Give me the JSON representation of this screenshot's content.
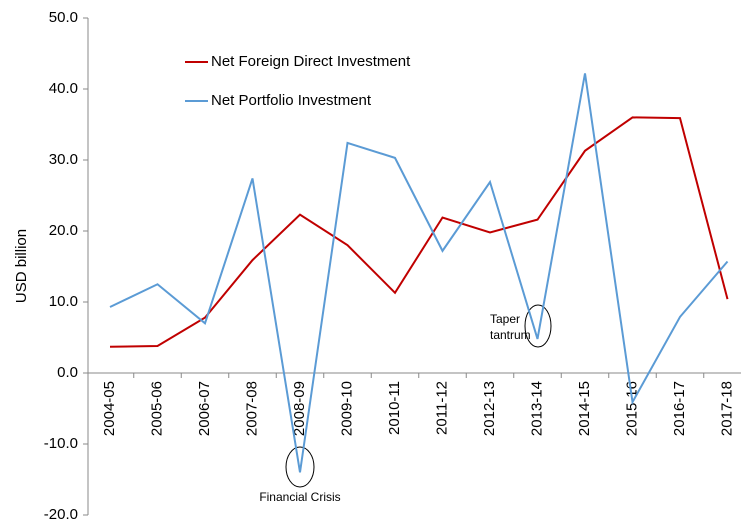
{
  "chart_data": {
    "type": "line",
    "y_axis_label": "USD billion",
    "categories": [
      "2004-05",
      "2005-06",
      "2006-07",
      "2007-08",
      "2008-09",
      "2009-10",
      "2010-11",
      "2011-12",
      "2012-13",
      "2013-14",
      "2014-15",
      "2015-16",
      "2016-17",
      "2017-18"
    ],
    "series": [
      {
        "name": "Net Foreign Direct Investment",
        "color": "#c00000",
        "values": [
          3.7,
          3.8,
          7.8,
          15.9,
          22.3,
          18.0,
          11.3,
          21.9,
          19.8,
          21.6,
          31.3,
          36.0,
          35.9,
          10.4
        ]
      },
      {
        "name": "Net Portfolio Investment",
        "color": "#5b9bd5",
        "values": [
          9.3,
          12.5,
          7.0,
          27.4,
          -14.0,
          32.4,
          30.3,
          17.2,
          26.9,
          4.8,
          42.2,
          -4.1,
          7.9,
          15.7
        ]
      }
    ],
    "ylim": [
      -20,
      50
    ],
    "yticks": [
      {
        "value": -20,
        "label": "-20.0"
      },
      {
        "value": -10,
        "label": "-10.0"
      },
      {
        "value": 0,
        "label": "0.0"
      },
      {
        "value": 10,
        "label": "10.0"
      },
      {
        "value": 20,
        "label": "20.0"
      },
      {
        "value": 30,
        "label": "30.0"
      },
      {
        "value": 40,
        "label": "40.0"
      },
      {
        "value": 50,
        "label": "50.0"
      }
    ],
    "annotations": [
      {
        "text": "Financial Crisis"
      },
      {
        "lines": [
          "Taper",
          "tantrum"
        ]
      }
    ]
  }
}
